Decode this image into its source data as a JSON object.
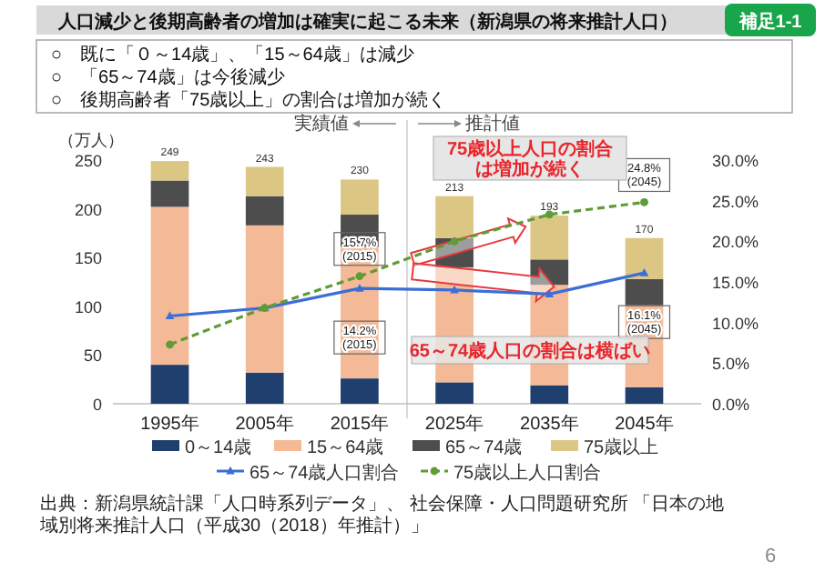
{
  "chart_data": {
    "type": "bar",
    "stacked": true,
    "title": "人口減少と後期高齢者の増加は確実に起こる未来（新潟県の将来推計人口）",
    "subtitle": "○　既に「０～14歳」、「15～64歳」は減少\n○　「65～74歳」は今後減少\n○　後期高齢者「75歳以上」の割合は増加が続く",
    "ylabel": "（万人）",
    "x": [
      1995,
      2005,
      2015,
      2025,
      2035,
      2045
    ],
    "xlim": [
      1989,
      2051
    ],
    "xticks": [
      {
        "value": 1995,
        "label": "1995年"
      },
      {
        "value": 2005,
        "label": "2005年"
      },
      {
        "value": 2015,
        "label": "2015年"
      },
      {
        "value": 2025,
        "label": "2025年"
      },
      {
        "value": 2035,
        "label": "2035年"
      },
      {
        "value": 2045,
        "label": "2045年"
      }
    ],
    "ylim": [
      0,
      250
    ],
    "yticks": [
      0,
      50,
      100,
      150,
      200,
      250
    ],
    "y2lim": [
      0,
      30
    ],
    "y2ticks": [
      {
        "value": 0,
        "label": "0.0%"
      },
      {
        "value": 5,
        "label": "5.0%"
      },
      {
        "value": 10,
        "label": "10.0%"
      },
      {
        "value": 15,
        "label": "15.0%"
      },
      {
        "value": 20,
        "label": "20.0%"
      },
      {
        "value": 25,
        "label": "25.0%"
      },
      {
        "value": 30,
        "label": "30.0%"
      }
    ],
    "series": [
      {
        "name": "0～14歳",
        "color": "#1f3f6e",
        "values": [
          40,
          32,
          26,
          22,
          19,
          17
        ]
      },
      {
        "name": "15～64歳",
        "color": "#f4b996",
        "values": [
          162,
          151,
          135,
          118,
          103,
          84
        ]
      },
      {
        "name": "65～74歳",
        "color": "#4d4d4d",
        "values": [
          27,
          30,
          33,
          30,
          26,
          27
        ]
      },
      {
        "name": "75歳以上",
        "color": "#dcc683",
        "values": [
          20,
          30,
          36,
          43,
          45,
          42
        ]
      },
      {
        "name": "65～74歳人口割合",
        "type": "line",
        "axis": "y2",
        "color": "#3b6fd6",
        "marker": "triangle",
        "line_style": "solid",
        "values": [
          10.8,
          11.8,
          14.2,
          14.0,
          13.5,
          16.1
        ],
        "value_labels": [
          null,
          null,
          "14.2%\n(2015)",
          null,
          null,
          "16.1%\n(2045)"
        ]
      },
      {
        "name": "75歳以上人口割合",
        "type": "line",
        "axis": "y2",
        "color": "#5e9c35",
        "marker": "circle",
        "line_style": "dashed",
        "values": [
          7.3,
          11.8,
          15.7,
          20.0,
          23.3,
          24.8
        ],
        "value_labels": [
          null,
          null,
          "15.7%\n(2015)",
          null,
          null,
          "24.8%\n(2045)"
        ]
      }
    ],
    "totals": [
      "249",
      "243",
      "230",
      "213",
      "193",
      "170"
    ],
    "ref_lines": [
      {
        "axis": "x",
        "value": 2020,
        "color": "#d9d9d9"
      }
    ],
    "legend": "bottom",
    "annotations": [
      "実績値",
      "推計値",
      "75歳以上人口の割合は増加が続く",
      "65～74歳人口の割合は横ばい",
      "補足1-1",
      "出典：新潟県統計課「人口時系列データ」、 社会保障・人口問題研究所 「日本の地域別将来推計人口（平成30（2018）年推計）」",
      "6"
    ]
  }
}
